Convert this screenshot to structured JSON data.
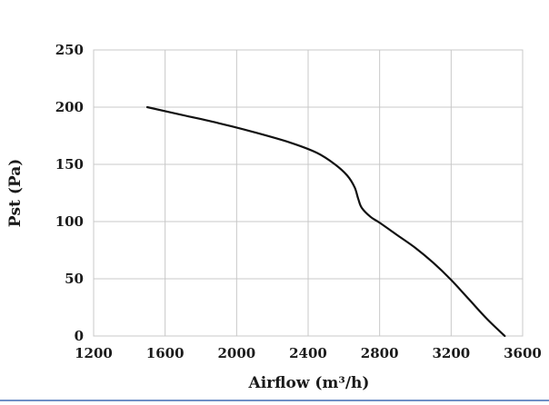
{
  "chart_data": {
    "type": "line",
    "title": "",
    "xlabel": "Airflow (m³/h)",
    "ylabel": "Pst (Pa)",
    "xlim": [
      1200,
      3600
    ],
    "ylim": [
      0,
      250
    ],
    "x_ticks": [
      1200,
      1600,
      2000,
      2400,
      2800,
      3200,
      3600
    ],
    "y_ticks": [
      0,
      50,
      100,
      150,
      200,
      250
    ],
    "grid": true,
    "legend": "none",
    "series": [
      {
        "color": "#111111",
        "x": [
          1500,
          1700,
          1900,
          2100,
          2300,
          2450,
          2550,
          2620,
          2660,
          2680,
          2700,
          2750,
          2800,
          2900,
          3000,
          3100,
          3200,
          3300,
          3400,
          3500
        ],
        "y": [
          200,
          193,
          186,
          178,
          169,
          160,
          150,
          140,
          130,
          120,
          112,
          104,
          99,
          88,
          77,
          64,
          49,
          32,
          15,
          0
        ]
      }
    ]
  }
}
